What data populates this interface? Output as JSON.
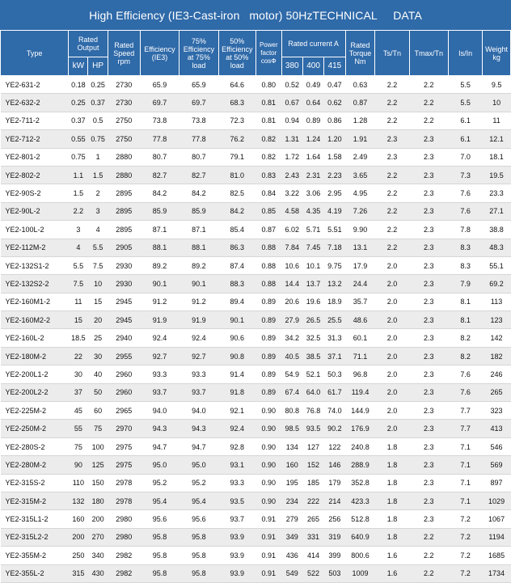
{
  "title": "High Efficiency (IE3-Cast-iron   motor) 50HzTECHNICAL     DATA",
  "headers": {
    "type": "Type",
    "rated_output": "Rated Output",
    "kw": "kW",
    "hp": "HP",
    "rated_speed": "Rated Speed rpm",
    "efficiency_ie3": "Efficiency (IE3)",
    "eff75": "75% Efficiency at 75% load",
    "eff50": "50% Efficiency at 50% load",
    "power_factor": "Power factor cosΦ",
    "rated_current": "Rated current A",
    "v380": "380",
    "v400": "400",
    "v415": "415",
    "rated_torque": "Rated Torque Nm",
    "ts_tn": "Ts/Tn",
    "tmax_tn": "Tmax/Tn",
    "is_in": "Is/In",
    "weight": "Weight kg"
  },
  "rows": [
    [
      "YE2-631-2",
      "0.18",
      "0.25",
      "2730",
      "65.9",
      "65.9",
      "64.6",
      "0.80",
      "0.52",
      "0.49",
      "0.47",
      "0.63",
      "2.2",
      "2.2",
      "5.5",
      "9.5"
    ],
    [
      "YE2-632-2",
      "0.25",
      "0.37",
      "2730",
      "69.7",
      "69.7",
      "68.3",
      "0.81",
      "0.67",
      "0.64",
      "0.62",
      "0.87",
      "2.2",
      "2.2",
      "5.5",
      "10"
    ],
    [
      "YE2-711-2",
      "0.37",
      "0.5",
      "2750",
      "73.8",
      "73.8",
      "72.3",
      "0.81",
      "0.94",
      "0.89",
      "0.86",
      "1.28",
      "2.2",
      "2.2",
      "6.1",
      "11"
    ],
    [
      "YE2-712-2",
      "0.55",
      "0.75",
      "2750",
      "77.8",
      "77.8",
      "76.2",
      "0.82",
      "1.31",
      "1.24",
      "1.20",
      "1.91",
      "2.3",
      "2.3",
      "6.1",
      "12.1"
    ],
    [
      "YE2-801-2",
      "0.75",
      "1",
      "2880",
      "80.7",
      "80.7",
      "79.1",
      "0.82",
      "1.72",
      "1.64",
      "1.58",
      "2.49",
      "2.3",
      "2.3",
      "7.0",
      "18.1"
    ],
    [
      "YE2-802-2",
      "1.1",
      "1.5",
      "2880",
      "82.7",
      "82.7",
      "81.0",
      "0.83",
      "2.43",
      "2.31",
      "2.23",
      "3.65",
      "2.2",
      "2.3",
      "7.3",
      "19.5"
    ],
    [
      "YE2-90S-2",
      "1.5",
      "2",
      "2895",
      "84.2",
      "84.2",
      "82.5",
      "0.84",
      "3.22",
      "3.06",
      "2.95",
      "4.95",
      "2.2",
      "2.3",
      "7.6",
      "23.3"
    ],
    [
      "YE2-90L-2",
      "2.2",
      "3",
      "2895",
      "85.9",
      "85.9",
      "84.2",
      "0.85",
      "4.58",
      "4.35",
      "4.19",
      "7.26",
      "2.2",
      "2.3",
      "7.6",
      "27.1"
    ],
    [
      "YE2-100L-2",
      "3",
      "4",
      "2895",
      "87.1",
      "87.1",
      "85.4",
      "0.87",
      "6.02",
      "5.71",
      "5.51",
      "9.90",
      "2.2",
      "2.3",
      "7.8",
      "38.8"
    ],
    [
      "YE2-112M-2",
      "4",
      "5.5",
      "2905",
      "88.1",
      "88.1",
      "86.3",
      "0.88",
      "7.84",
      "7.45",
      "7.18",
      "13.1",
      "2.2",
      "2.3",
      "8.3",
      "48.3"
    ],
    [
      "YE2-132S1-2",
      "5.5",
      "7.5",
      "2930",
      "89.2",
      "89.2",
      "87.4",
      "0.88",
      "10.6",
      "10.1",
      "9.75",
      "17.9",
      "2.0",
      "2.3",
      "8.3",
      "55.1"
    ],
    [
      "YE2-132S2-2",
      "7.5",
      "10",
      "2930",
      "90.1",
      "90.1",
      "88.3",
      "0.88",
      "14.4",
      "13.7",
      "13.2",
      "24.4",
      "2.0",
      "2.3",
      "7.9",
      "69.2"
    ],
    [
      "YE2-160M1-2",
      "11",
      "15",
      "2945",
      "91.2",
      "91.2",
      "89.4",
      "0.89",
      "20.6",
      "19.6",
      "18.9",
      "35.7",
      "2.0",
      "2.3",
      "8.1",
      "113"
    ],
    [
      "YE2-160M2-2",
      "15",
      "20",
      "2945",
      "91.9",
      "91.9",
      "90.1",
      "0.89",
      "27.9",
      "26.5",
      "25.5",
      "48.6",
      "2.0",
      "2.3",
      "8.1",
      "123"
    ],
    [
      "YE2-160L-2",
      "18.5",
      "25",
      "2940",
      "92.4",
      "92.4",
      "90.6",
      "0.89",
      "34.2",
      "32.5",
      "31.3",
      "60.1",
      "2.0",
      "2.3",
      "8.2",
      "142"
    ],
    [
      "YE2-180M-2",
      "22",
      "30",
      "2955",
      "92.7",
      "92.7",
      "90.8",
      "0.89",
      "40.5",
      "38.5",
      "37.1",
      "71.1",
      "2.0",
      "2.3",
      "8.2",
      "182"
    ],
    [
      "YE2-200L1-2",
      "30",
      "40",
      "2960",
      "93.3",
      "93.3",
      "91.4",
      "0.89",
      "54.9",
      "52.1",
      "50.3",
      "96.8",
      "2.0",
      "2.3",
      "7.6",
      "246"
    ],
    [
      "YE2-200L2-2",
      "37",
      "50",
      "2960",
      "93.7",
      "93.7",
      "91.8",
      "0.89",
      "67.4",
      "64.0",
      "61.7",
      "119.4",
      "2.0",
      "2.3",
      "7.6",
      "265"
    ],
    [
      "YE2-225M-2",
      "45",
      "60",
      "2965",
      "94.0",
      "94.0",
      "92.1",
      "0.90",
      "80.8",
      "76.8",
      "74.0",
      "144.9",
      "2.0",
      "2.3",
      "7.7",
      "323"
    ],
    [
      "YE2-250M-2",
      "55",
      "75",
      "2970",
      "94.3",
      "94.3",
      "92.4",
      "0.90",
      "98.5",
      "93.5",
      "90.2",
      "176.9",
      "2.0",
      "2.3",
      "7.7",
      "413"
    ],
    [
      "YE2-280S-2",
      "75",
      "100",
      "2975",
      "94.7",
      "94.7",
      "92.8",
      "0.90",
      "134",
      "127",
      "122",
      "240.8",
      "1.8",
      "2.3",
      "7.1",
      "546"
    ],
    [
      "YE2-280M-2",
      "90",
      "125",
      "2975",
      "95.0",
      "95.0",
      "93.1",
      "0.90",
      "160",
      "152",
      "146",
      "288.9",
      "1.8",
      "2.3",
      "7.1",
      "569"
    ],
    [
      "YE2-315S-2",
      "110",
      "150",
      "2978",
      "95.2",
      "95.2",
      "93.3",
      "0.90",
      "195",
      "185",
      "179",
      "352.8",
      "1.8",
      "2.3",
      "7.1",
      "897"
    ],
    [
      "YE2-315M-2",
      "132",
      "180",
      "2978",
      "95.4",
      "95.4",
      "93.5",
      "0.90",
      "234",
      "222",
      "214",
      "423.3",
      "1.8",
      "2.3",
      "7.1",
      "1029"
    ],
    [
      "YE2-315L1-2",
      "160",
      "200",
      "2980",
      "95.6",
      "95.6",
      "93.7",
      "0.91",
      "279",
      "265",
      "256",
      "512.8",
      "1.8",
      "2.3",
      "7.2",
      "1067"
    ],
    [
      "YE2-315L2-2",
      "200",
      "270",
      "2980",
      "95.8",
      "95.8",
      "93.9",
      "0.91",
      "349",
      "331",
      "319",
      "640.9",
      "1.8",
      "2.2",
      "7.2",
      "1194"
    ],
    [
      "YE2-355M-2",
      "250",
      "340",
      "2982",
      "95.8",
      "95.8",
      "93.9",
      "0.91",
      "436",
      "414",
      "399",
      "800.6",
      "1.6",
      "2.2",
      "7.2",
      "1685"
    ],
    [
      "YE2-355L-2",
      "315",
      "430",
      "2982",
      "95.8",
      "95.8",
      "93.9",
      "0.91",
      "549",
      "522",
      "503",
      "1009",
      "1.6",
      "2.2",
      "7.2",
      "1734"
    ]
  ]
}
